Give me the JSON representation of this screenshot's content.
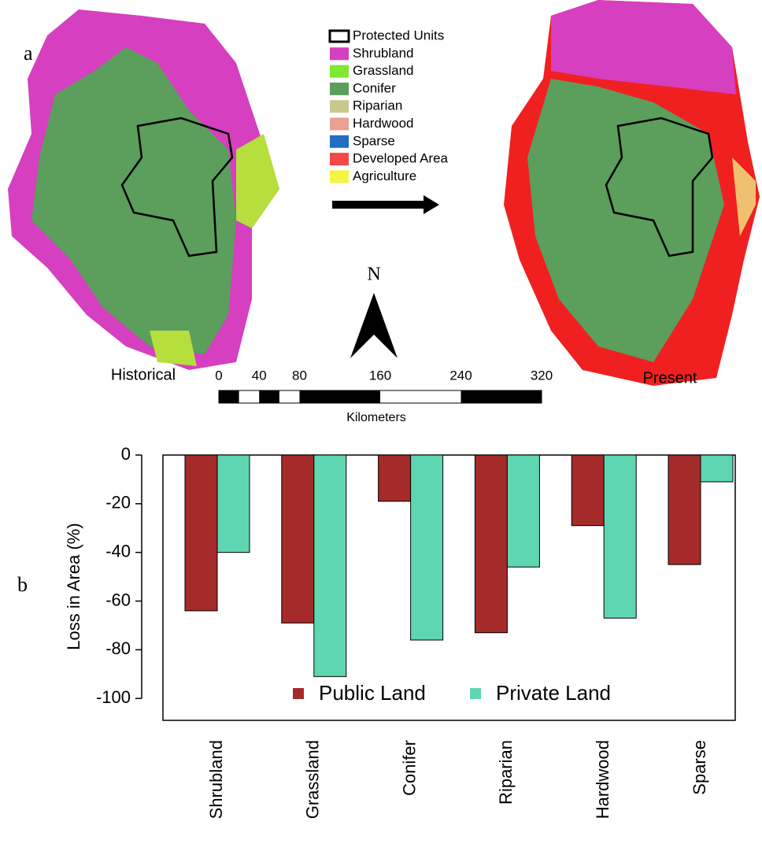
{
  "figure": {
    "panel_a": "a",
    "panel_b": "b",
    "map_left_label": "Historical",
    "map_right_label": "Present",
    "north": "N",
    "scale_ticks": [
      0,
      40,
      80,
      160,
      240,
      320
    ],
    "scale_unit": "Kilometers",
    "map_legend": [
      {
        "label": "Protected Units",
        "color": "#000000",
        "style": "outline"
      },
      {
        "label": "Shrubland",
        "color": "#d63fbf"
      },
      {
        "label": "Grassland",
        "color": "#7ee832"
      },
      {
        "label": "Conifer",
        "color": "#5c9e5c"
      },
      {
        "label": "Riparian",
        "color": "#c8c88c"
      },
      {
        "label": "Hardwood",
        "color": "#e8a090"
      },
      {
        "label": "Sparse",
        "color": "#1f6fc4"
      },
      {
        "label": "Developed Area",
        "color": "#f24848"
      },
      {
        "label": "Agriculture",
        "color": "#f5f542"
      }
    ]
  },
  "chart_data": {
    "type": "bar",
    "ylabel": "Loss in Area (%)",
    "categories": [
      "Shrubland",
      "Grassland",
      "Conifer",
      "Riparian",
      "Hardwood",
      "Sparse"
    ],
    "series": [
      {
        "name": "Public Land",
        "color": "#a52a2a",
        "values": [
          -64,
          -69,
          -19,
          -73,
          -29,
          -45
        ]
      },
      {
        "name": "Private Land",
        "color": "#5fd6b2",
        "values": [
          -40,
          -91,
          -76,
          -46,
          -67,
          -11
        ]
      }
    ],
    "ylim": [
      -109,
      0
    ],
    "yticks": [
      0,
      -20,
      -40,
      -60,
      -80,
      -100
    ],
    "legend": "bottom"
  }
}
